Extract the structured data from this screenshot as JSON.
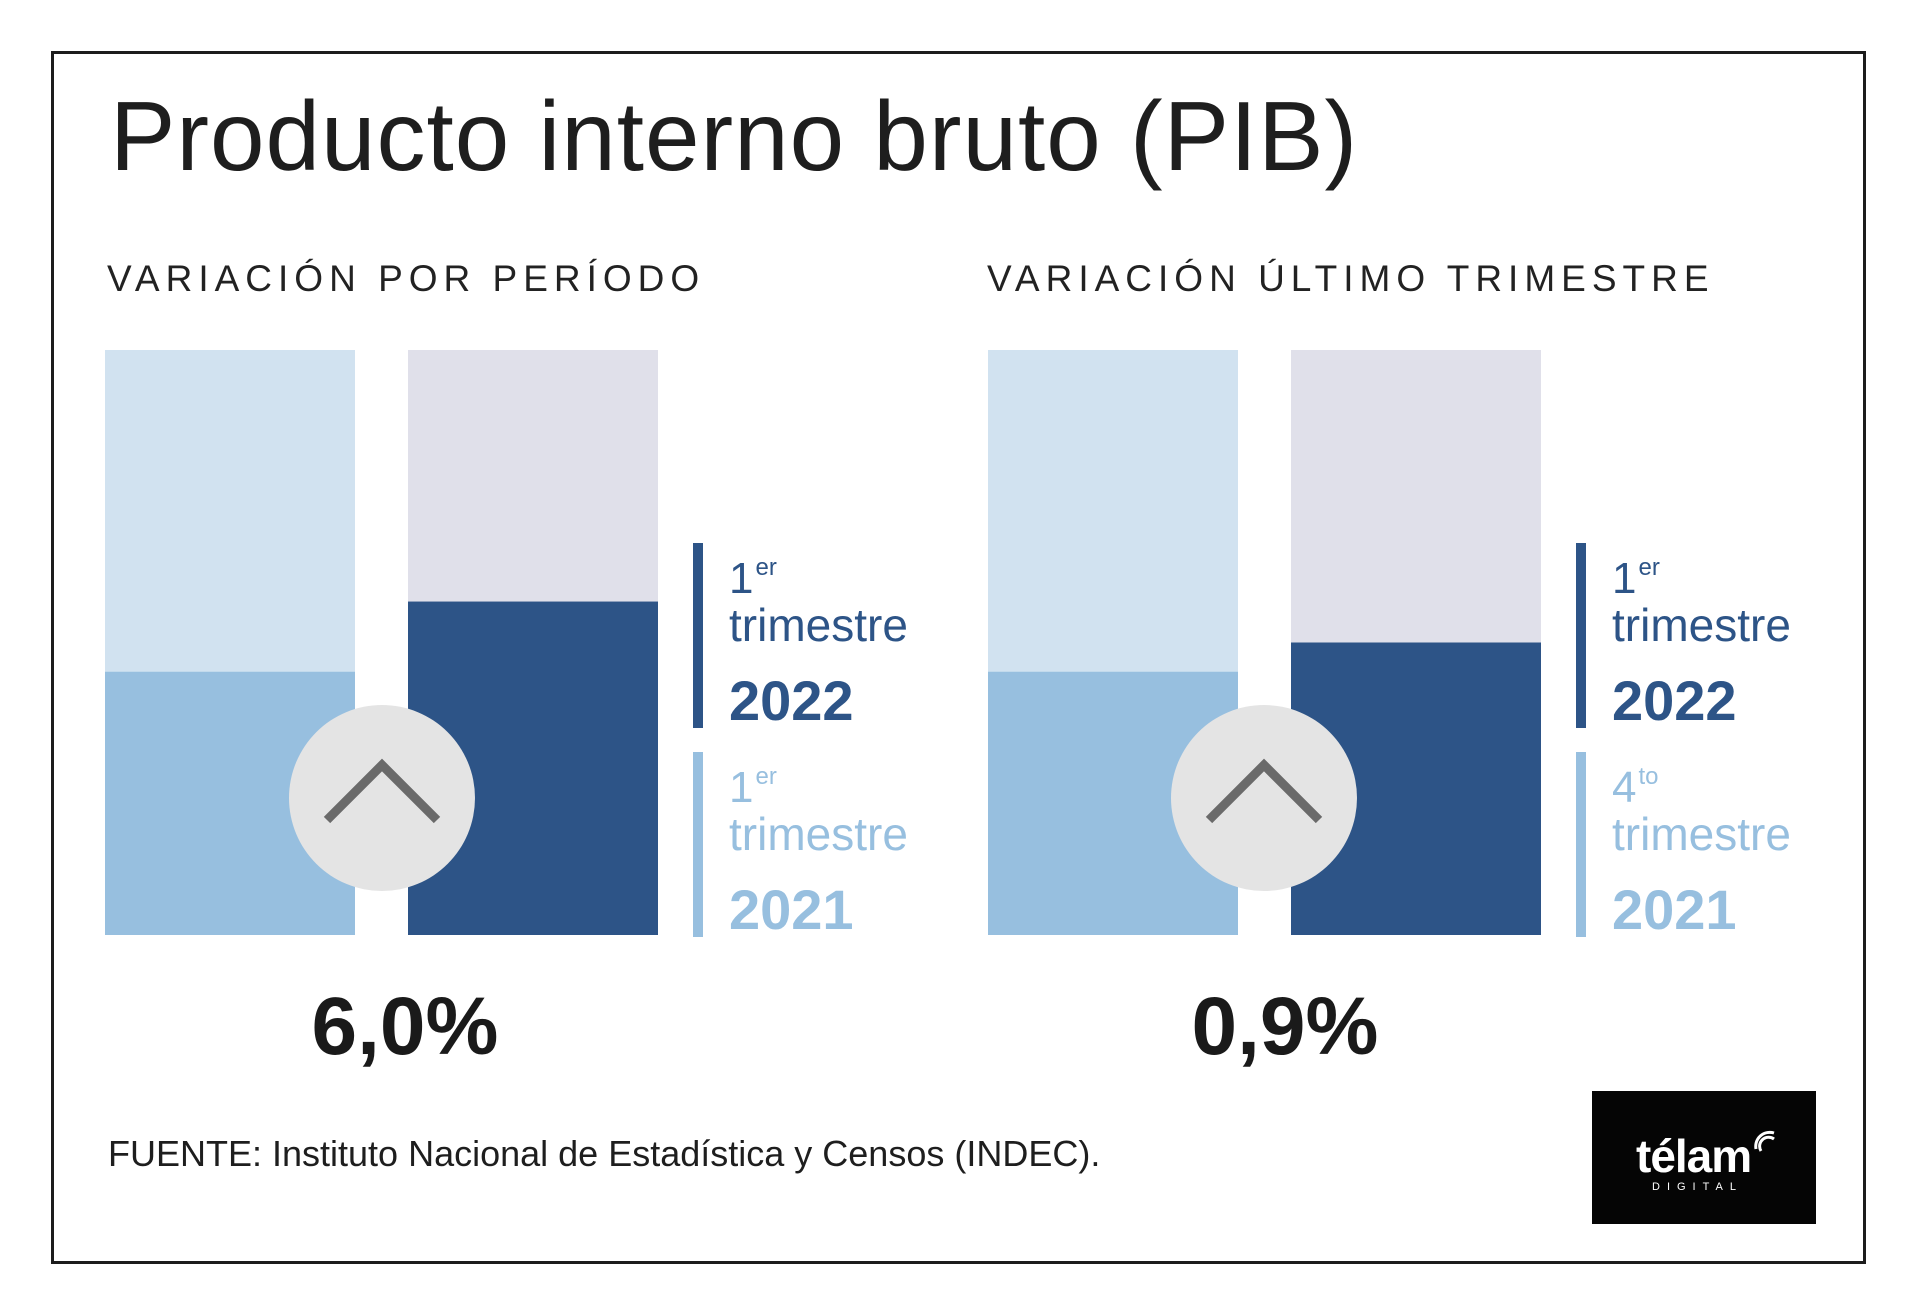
{
  "title": "Producto interno bruto (PIB)",
  "source": "FUENTE: Instituto Nacional de Estadística y Censos (INDEC).",
  "logo": {
    "word": "télam",
    "sub": "DIGITAL"
  },
  "colors": {
    "light_bg": "#d1e2f0",
    "light_fill": "#97bfdf",
    "dark_bg": "#e0e0ea",
    "dark_fill": "#2d5487",
    "circle": "#e4e4e4",
    "chevron": "#6a6a6a"
  },
  "chart_data": [
    {
      "type": "bar",
      "title": "VARIACIÓN POR PERÍODO",
      "categories": [
        "1er trimestre 2021",
        "1er trimestre 2022"
      ],
      "values": [
        45,
        57
      ],
      "ylim": [
        0,
        100
      ],
      "change_label": "6,0%",
      "icon": "chevron-up-icon",
      "legend": [
        {
          "ord": "1",
          "sup": "er",
          "word": "trimestre",
          "year": "2022",
          "tone": "dark"
        },
        {
          "ord": "1",
          "sup": "er",
          "word": "trimestre",
          "year": "2021",
          "tone": "light"
        }
      ]
    },
    {
      "type": "bar",
      "title": "VARIACIÓN ÚLTIMO TRIMESTRE",
      "categories": [
        "4to trimestre 2021",
        "1er trimestre 2022"
      ],
      "values": [
        45,
        50
      ],
      "ylim": [
        0,
        100
      ],
      "change_label": "0,9%",
      "icon": "chevron-up-icon",
      "legend": [
        {
          "ord": "1",
          "sup": "er",
          "word": "trimestre",
          "year": "2022",
          "tone": "dark"
        },
        {
          "ord": "4",
          "sup": "to",
          "word": "trimestre",
          "year": "2021",
          "tone": "light"
        }
      ]
    }
  ]
}
